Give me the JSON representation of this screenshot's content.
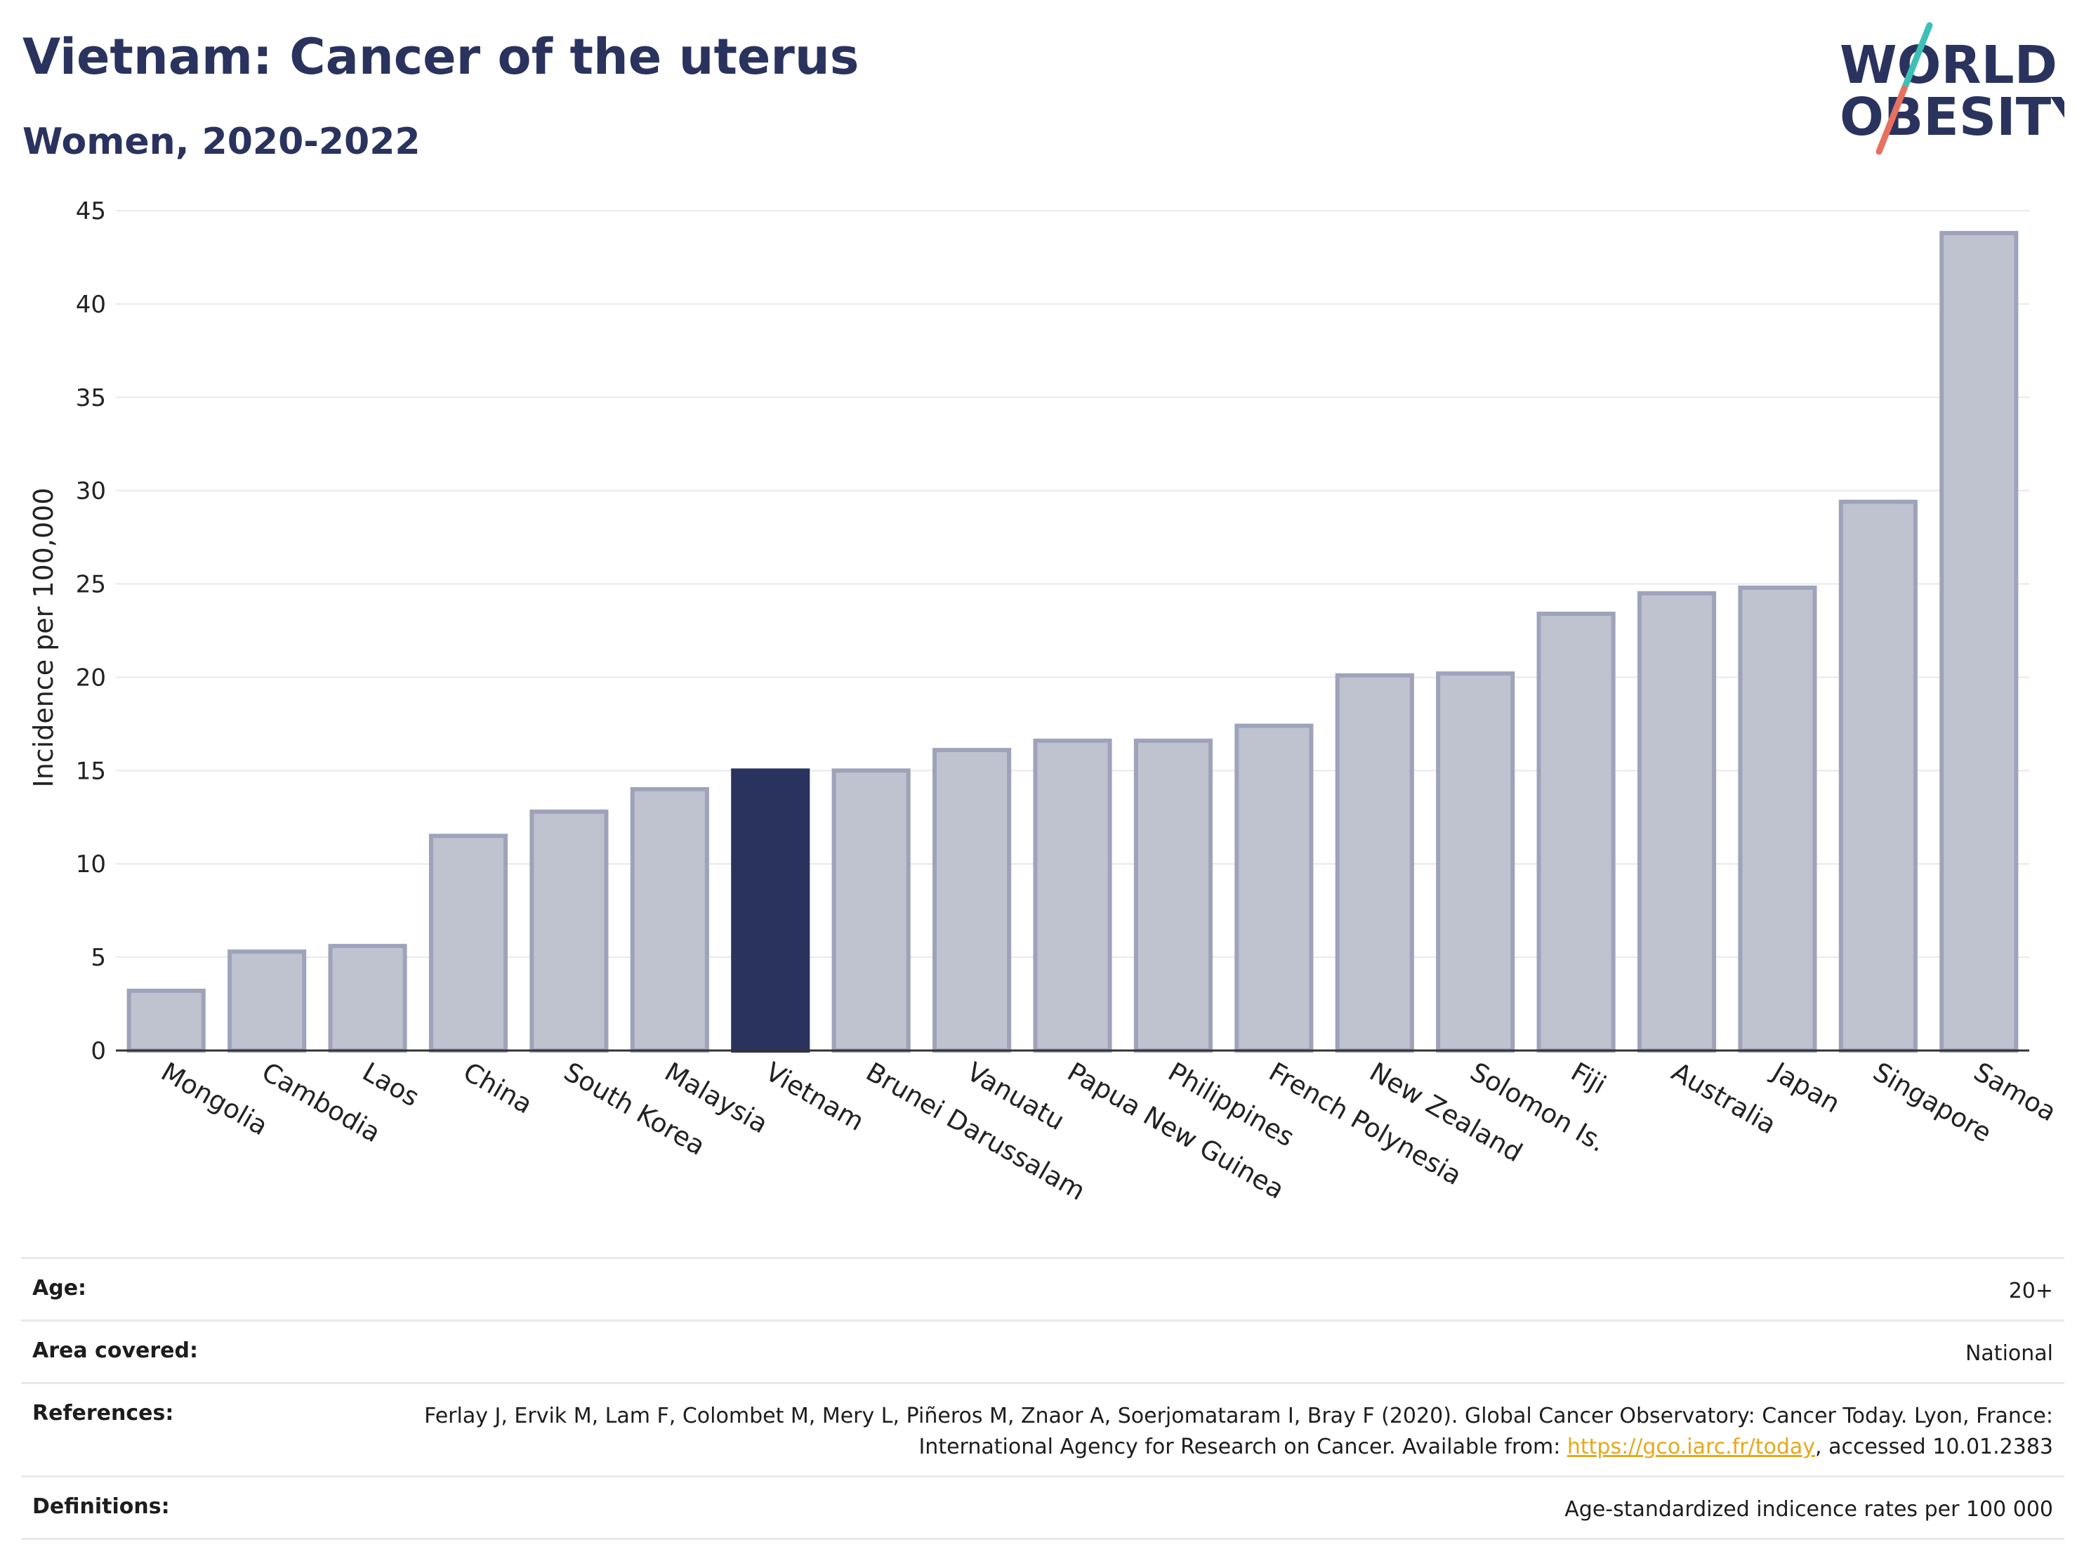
{
  "header": {
    "title": "Vietnam: Cancer of the uterus",
    "subtitle": "Women, 2020-2022"
  },
  "logo": {
    "line1": "WORLD",
    "line2": "OBESITY",
    "accent_colors": [
      "#3cc1b7",
      "#e8705f"
    ]
  },
  "chart_data": {
    "type": "bar",
    "title": "Vietnam: Cancer of the uterus",
    "subtitle": "Women, 2020-2022",
    "xlabel": "",
    "ylabel": "Incidence per 100,000",
    "ylim": [
      0,
      45
    ],
    "yticks": [
      0,
      5,
      10,
      15,
      20,
      25,
      30,
      35,
      40,
      45
    ],
    "grid": true,
    "categories": [
      "Mongolia",
      "Cambodia",
      "Laos",
      "China",
      "South Korea",
      "Malaysia",
      "Vietnam",
      "Brunei Darussalam",
      "Vanuatu",
      "Papua New Guinea",
      "Philippines",
      "French Polynesia",
      "New Zealand",
      "Solomon Is.",
      "Fiji",
      "Australia",
      "Japan",
      "Singapore",
      "Samoa"
    ],
    "values": [
      3.2,
      5.3,
      5.6,
      11.5,
      12.8,
      14.0,
      15.0,
      15.0,
      16.1,
      16.6,
      16.6,
      17.4,
      20.1,
      20.2,
      23.4,
      24.5,
      24.8,
      29.4,
      43.8
    ],
    "highlight": "Vietnam",
    "colors": {
      "bar": "#bfc2cf",
      "bar_edge": "#9ea3ba",
      "highlight": "#2a335e"
    }
  },
  "info": [
    {
      "key": "Age:",
      "value": "20+"
    },
    {
      "key": "Area covered:",
      "value": "National"
    },
    {
      "key": "References:",
      "value_before": "Ferlay J, Ervik M, Lam F, Colombet M, Mery L, Piñeros M, Znaor A, Soerjomataram I, Bray F (2020). Global Cancer Observatory: Cancer Today. Lyon, France: International Agency for Research on Cancer. Available from: ",
      "link": "https://gco.iarc.fr/today",
      "value_after": ", accessed 10.01.2383"
    },
    {
      "key": "Definitions:",
      "value": "Age-standardized indicence rates per 100 000"
    }
  ]
}
